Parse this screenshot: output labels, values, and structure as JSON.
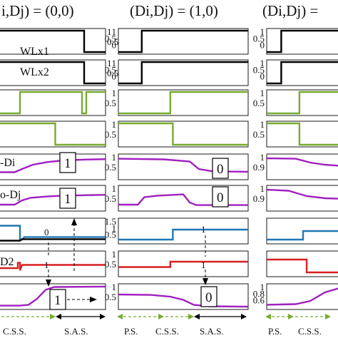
{
  "header": {
    "col1": "i,Dj) = (0,0)",
    "col2": "(Di,Dj) = (1,0)",
    "col3": "(Di,Dj) ="
  },
  "signal_labels": [
    "WLx1",
    "WLx2",
    "-Di",
    "o-Dj",
    "D2"
  ],
  "phase_labels": {
    "col1": [
      "C.S.S.",
      "S.A.S."
    ],
    "col2": [
      "P.S.",
      "C.S.S.",
      "S.A.S."
    ],
    "col3": [
      "P.S.",
      "C.S.S."
    ]
  },
  "annotations": {
    "col1": {
      "row4_box": "1",
      "row5_box": "1",
      "row8_box": "1",
      "row6_mark": "0",
      "row7_mark": "1"
    },
    "col2": {
      "row4_box": "0",
      "row5_box": "0",
      "row8_box": "0",
      "row6_mark": "1",
      "row7_mark": "1"
    }
  },
  "colors": {
    "black": "#000000",
    "green": "#77ac30",
    "purple": "#a020c0",
    "blue": "#1f77b4",
    "red": "#d62020"
  },
  "chart_data": {
    "type": "line",
    "x_range": [
      0,
      1
    ],
    "col1_rows": [
      {
        "series": [
          {
            "color": "#000000",
            "points": [
              [
                0,
                1
              ],
              [
                0.8,
                1
              ],
              [
                0.8,
                0
              ],
              [
                1,
                0
              ]
            ]
          }
        ],
        "ylim": [
          0,
          1
        ],
        "yticks": [
          "1",
          "0.5"
        ]
      },
      {
        "series": [
          {
            "color": "#000000",
            "points": [
              [
                0,
                1
              ],
              [
                0.8,
                1
              ],
              [
                0.8,
                0
              ],
              [
                1,
                0
              ]
            ]
          }
        ],
        "ylim": [
          0,
          1
        ],
        "yticks": [
          "1",
          "0.5"
        ]
      },
      {
        "series": [
          {
            "color": "#77ac30",
            "points": [
              [
                0,
                0
              ],
              [
                0.2,
                0
              ],
              [
                0.2,
                1
              ],
              [
                0.78,
                1
              ],
              [
                0.78,
                0
              ],
              [
                0.82,
                0
              ],
              [
                0.82,
                1
              ],
              [
                1,
                1
              ]
            ]
          }
        ],
        "ylim": [
          0,
          1
        ],
        "yticks": []
      },
      {
        "series": [
          {
            "color": "#77ac30",
            "points": [
              [
                0,
                1
              ],
              [
                0.53,
                1
              ],
              [
                0.53,
                0
              ],
              [
                1,
                0
              ]
            ]
          }
        ],
        "ylim": [
          0,
          1
        ],
        "yticks": []
      },
      {
        "series": [
          {
            "color": "#a020c0",
            "points": [
              [
                0,
                0.25
              ],
              [
                0.15,
                0.25
              ],
              [
                0.22,
                0.4
              ],
              [
                0.32,
                0.6
              ],
              [
                0.45,
                0.72
              ],
              [
                0.6,
                0.8
              ],
              [
                0.8,
                0.84
              ],
              [
                1,
                0.86
              ]
            ]
          }
        ],
        "ylim": [
          0,
          1
        ],
        "yticks": []
      },
      {
        "series": [
          {
            "color": "#a020c0",
            "points": [
              [
                0,
                0.2
              ],
              [
                0.15,
                0.2
              ],
              [
                0.22,
                0.4
              ],
              [
                0.3,
                0.52
              ],
              [
                0.45,
                0.58
              ],
              [
                0.6,
                0.62
              ],
              [
                0.8,
                0.64
              ],
              [
                1,
                0.66
              ]
            ]
          }
        ],
        "ylim": [
          0,
          1
        ],
        "yticks": []
      },
      {
        "series": [
          {
            "color": "#1f77b4",
            "points": [
              [
                0,
                0.75
              ],
              [
                0.2,
                0.75
              ],
              [
                0.2,
                0.1
              ],
              [
                0.22,
                0.1
              ],
              [
                0.24,
                0.22
              ],
              [
                1,
                0.22
              ]
            ]
          },
          {
            "color": "#000000",
            "points": [
              [
                0,
                0.05
              ],
              [
                0.2,
                0.05
              ],
              [
                0.22,
                0.12
              ],
              [
                1,
                0.12
              ]
            ]
          }
        ],
        "ylim": [
          0,
          1
        ],
        "yticks": []
      },
      {
        "series": [
          {
            "color": "#d62020",
            "points": [
              [
                0,
                0.3
              ],
              [
                0.18,
                0.3
              ],
              [
                0.18,
                0.55
              ],
              [
                0.2,
                0.55
              ],
              [
                0.2,
                0.2
              ],
              [
                0.22,
                0.45
              ],
              [
                1,
                0.45
              ]
            ]
          }
        ],
        "ylim": [
          0,
          1
        ],
        "yticks": []
      },
      {
        "series": [
          {
            "color": "#a020c0",
            "points": [
              [
                0,
                0.08
              ],
              [
                0.2,
                0.08
              ],
              [
                0.28,
                0.12
              ],
              [
                0.36,
                0.4
              ],
              [
                0.44,
                0.82
              ],
              [
                0.52,
                0.95
              ],
              [
                1,
                0.97
              ]
            ]
          }
        ],
        "ylim": [
          0,
          1
        ],
        "yticks": []
      }
    ],
    "col2_rows": [
      {
        "series": [
          {
            "color": "#000000",
            "points": [
              [
                0,
                0
              ],
              [
                0.18,
                0
              ],
              [
                0.18,
                1
              ],
              [
                1,
                1
              ]
            ]
          }
        ],
        "ylim": [
          0,
          1
        ],
        "yticks": [
          "1",
          "0.5",
          "0"
        ]
      },
      {
        "series": [
          {
            "color": "#000000",
            "points": [
              [
                0,
                0
              ],
              [
                0.18,
                0
              ],
              [
                0.18,
                1
              ],
              [
                1,
                1
              ]
            ]
          }
        ],
        "ylim": [
          0,
          1
        ],
        "yticks": [
          "1",
          "0.5",
          "0"
        ]
      },
      {
        "series": [
          {
            "color": "#77ac30",
            "points": [
              [
                0,
                0
              ],
              [
                0.4,
                0
              ],
              [
                0.4,
                1
              ],
              [
                1,
                1
              ]
            ]
          }
        ],
        "ylim": [
          0,
          1
        ],
        "yticks": [
          "1",
          "0.5"
        ]
      },
      {
        "series": [
          {
            "color": "#77ac30",
            "points": [
              [
                0,
                1
              ],
              [
                0.42,
                1
              ],
              [
                0.42,
                0
              ],
              [
                1,
                0
              ]
            ]
          }
        ],
        "ylim": [
          0,
          1
        ],
        "yticks": [
          "1",
          "0.5"
        ]
      },
      {
        "series": [
          {
            "color": "#a020c0",
            "points": [
              [
                0,
                0.88
              ],
              [
                0.35,
                0.85
              ],
              [
                0.55,
                0.75
              ],
              [
                0.62,
                0.4
              ],
              [
                0.72,
                0.3
              ],
              [
                0.85,
                0.28
              ],
              [
                1,
                0.27
              ]
            ]
          }
        ],
        "ylim": [
          0,
          1
        ],
        "yticks": [
          "1",
          "0.5"
        ]
      },
      {
        "series": [
          {
            "color": "#a020c0",
            "points": [
              [
                0,
                0.2
              ],
              [
                0.15,
                0.2
              ],
              [
                0.2,
                0.55
              ],
              [
                0.3,
                0.62
              ],
              [
                0.5,
                0.68
              ],
              [
                0.55,
                0.3
              ],
              [
                0.6,
                0.18
              ],
              [
                1,
                0.18
              ]
            ]
          }
        ],
        "ylim": [
          0,
          1
        ],
        "yticks": [
          "1",
          "0.5"
        ]
      },
      {
        "series": [
          {
            "color": "#1f77b4",
            "points": [
              [
                0,
                0.15
              ],
              [
                0.42,
                0.15
              ],
              [
                0.42,
                0.85
              ],
              [
                1,
                0.85
              ]
            ]
          }
        ],
        "ylim": [
          0,
          1.5
        ],
        "yticks": [
          "1.5",
          "1",
          "0.5"
        ]
      },
      {
        "series": [
          {
            "color": "#d62020",
            "points": [
              [
                0,
                0.35
              ],
              [
                0.4,
                0.35
              ],
              [
                0.4,
                0.6
              ],
              [
                1,
                0.6
              ]
            ]
          }
        ],
        "ylim": [
          0,
          1
        ],
        "yticks": [
          "1",
          "0.5"
        ]
      },
      {
        "series": [
          {
            "color": "#a020c0",
            "points": [
              [
                0,
                0.6
              ],
              [
                0.25,
                0.58
              ],
              [
                0.4,
                0.5
              ],
              [
                0.5,
                0.35
              ],
              [
                0.58,
                0.12
              ],
              [
                0.7,
                0.05
              ],
              [
                1,
                0.03
              ]
            ]
          }
        ],
        "ylim": [
          0,
          1
        ],
        "yticks": [
          "1",
          "0.5"
        ]
      }
    ],
    "col3_rows": [
      {
        "series": [
          {
            "color": "#000000",
            "points": [
              [
                0,
                0
              ],
              [
                0.2,
                0
              ],
              [
                0.2,
                1
              ],
              [
                1,
                1
              ]
            ]
          }
        ],
        "ylim": [
          0,
          1
        ],
        "yticks": [
          "1",
          "0.5",
          "0"
        ]
      },
      {
        "series": [
          {
            "color": "#000000",
            "points": [
              [
                0,
                0
              ],
              [
                0.2,
                0
              ],
              [
                0.2,
                1
              ],
              [
                1,
                1
              ]
            ]
          }
        ],
        "ylim": [
          0,
          1
        ],
        "yticks": [
          "1",
          "0.5",
          "0"
        ]
      },
      {
        "series": [
          {
            "color": "#77ac30",
            "points": [
              [
                0,
                0
              ],
              [
                0.45,
                0
              ],
              [
                0.45,
                1
              ],
              [
                1,
                1
              ]
            ]
          }
        ],
        "ylim": [
          0,
          1
        ],
        "yticks": [
          "1",
          "0.5"
        ]
      },
      {
        "series": [
          {
            "color": "#77ac30",
            "points": [
              [
                0,
                1
              ],
              [
                0.45,
                1
              ],
              [
                0.45,
                0
              ],
              [
                1,
                0
              ]
            ]
          }
        ],
        "ylim": [
          0,
          1
        ],
        "yticks": [
          "1",
          "0.5"
        ]
      },
      {
        "series": [
          {
            "color": "#a020c0",
            "points": [
              [
                0,
                0.9
              ],
              [
                0.4,
                0.88
              ],
              [
                0.6,
                0.7
              ],
              [
                0.8,
                0.6
              ],
              [
                1,
                0.55
              ]
            ]
          }
        ],
        "ylim": [
          0,
          1
        ],
        "yticks": [
          "1",
          "0.9"
        ]
      },
      {
        "series": [
          {
            "color": "#a020c0",
            "points": [
              [
                0,
                0.9
              ],
              [
                0.3,
                0.85
              ],
              [
                0.55,
                0.6
              ],
              [
                0.8,
                0.5
              ],
              [
                1,
                0.48
              ]
            ]
          }
        ],
        "ylim": [
          0,
          1
        ],
        "yticks": [
          "1",
          "0.9"
        ]
      },
      {
        "series": [
          {
            "color": "#1f77b4",
            "points": [
              [
                0,
                0.1
              ],
              [
                0.5,
                0.1
              ],
              [
                0.5,
                0.5
              ],
              [
                1,
                0.5
              ]
            ]
          }
        ],
        "ylim": [
          0,
          1
        ],
        "yticks": []
      },
      {
        "series": [
          {
            "color": "#d62020",
            "points": [
              [
                0,
                0.7
              ],
              [
                0.55,
                0.7
              ],
              [
                0.55,
                0.1
              ],
              [
                1,
                0.1
              ]
            ]
          }
        ],
        "ylim": [
          0,
          1
        ],
        "yticks": []
      },
      {
        "series": [
          {
            "color": "#a020c0",
            "points": [
              [
                0,
                0.12
              ],
              [
                0.4,
                0.15
              ],
              [
                0.6,
                0.3
              ],
              [
                0.8,
                0.7
              ],
              [
                1,
                0.9
              ]
            ]
          }
        ],
        "ylim": [
          0,
          1
        ],
        "yticks": [
          "1",
          "0.8",
          "0.6"
        ]
      }
    ]
  }
}
